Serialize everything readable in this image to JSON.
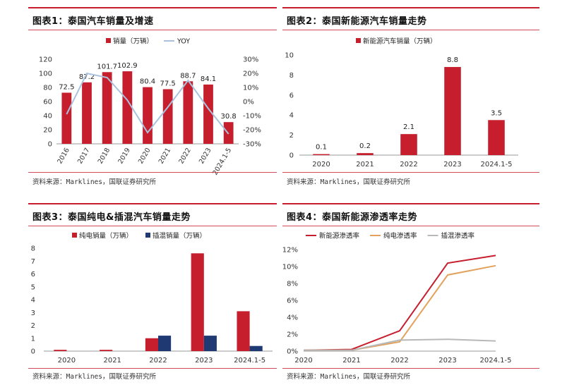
{
  "colors": {
    "red": "#c71e2d",
    "navy": "#1f3a73",
    "lightblue": "#a9c3df",
    "orange": "#e2a15c",
    "gray": "#b8b8b8",
    "rule": "#c71e2d"
  },
  "panels": [
    {
      "title": "图表1：泰国汽车销量及增速",
      "source": "资料来源：Marklines，国联证券研究所"
    },
    {
      "title": "图表2：泰国新能源汽车销量走势",
      "source": "资料来源：Marklines，国联证券研究所"
    },
    {
      "title": "图表3：泰国纯电&插混汽车销量走势",
      "source": "资料来源：Marklines，国联证券研究所"
    },
    {
      "title": "图表4：泰国新能源渗透率走势",
      "source": "资料来源：Marklines，国联证券研究所"
    }
  ],
  "chart_data": [
    {
      "type": "bar+line",
      "categories": [
        "2016",
        "2017",
        "2018",
        "2019",
        "2020",
        "2021",
        "2022",
        "2023",
        "2024.1-5"
      ],
      "series": [
        {
          "name": "销量（万辆）",
          "type": "bar",
          "axis": "left",
          "values": [
            72.5,
            87.2,
            101.7,
            102.9,
            80.4,
            77.5,
            88.7,
            84.1,
            30.8
          ],
          "labels": [
            "72.5",
            "87.2",
            "101.7",
            "102.9",
            "80.4",
            "77.5",
            "88.7",
            "84.1",
            "30.8"
          ]
        },
        {
          "name": "YOY",
          "type": "line",
          "axis": "right",
          "values": [
            -9,
            20,
            17,
            1,
            -22,
            -4,
            15,
            -5,
            -23
          ]
        }
      ],
      "ylim": [
        0,
        120
      ],
      "yticks": [
        "0",
        "20",
        "40",
        "60",
        "80",
        "100",
        "120"
      ],
      "y2lim": [
        -30,
        30
      ],
      "y2ticks": [
        "-30%",
        "-20%",
        "-10%",
        "0%",
        "10%",
        "20%",
        "30%"
      ],
      "legend_position": "top"
    },
    {
      "type": "bar",
      "categories": [
        "2020",
        "2021",
        "2022",
        "2023",
        "2024.1-5"
      ],
      "series": [
        {
          "name": "新能源汽车销量（万辆）",
          "values": [
            0.1,
            0.2,
            2.1,
            8.8,
            3.5
          ],
          "labels": [
            "0.1",
            "0.2",
            "2.1",
            "8.8",
            "3.5"
          ]
        }
      ],
      "ylim": [
        0,
        10
      ],
      "yticks": [
        "0",
        "2",
        "4",
        "6",
        "8",
        "10"
      ],
      "legend_position": "top"
    },
    {
      "type": "bar",
      "categories": [
        "2020",
        "2021",
        "2022",
        "2023",
        "2024.1-5"
      ],
      "series": [
        {
          "name": "纯电销量（万辆）",
          "values": [
            0.1,
            0.1,
            1.0,
            7.6,
            3.1
          ]
        },
        {
          "name": "插混销量（万辆）",
          "values": [
            0.0,
            0.0,
            1.2,
            1.2,
            0.4
          ]
        }
      ],
      "ylim": [
        0,
        8
      ],
      "yticks": [
        "0",
        "1",
        "2",
        "3",
        "4",
        "5",
        "6",
        "7",
        "8"
      ],
      "legend_position": "top"
    },
    {
      "type": "line",
      "categories": [
        "2020",
        "2021",
        "2022",
        "2023",
        "2024.1-5"
      ],
      "series": [
        {
          "name": "新能源渗透率",
          "values": [
            0.1,
            0.2,
            2.4,
            10.4,
            11.3
          ]
        },
        {
          "name": "纯电渗透率",
          "values": [
            0.1,
            0.1,
            1.1,
            9.0,
            10.1
          ]
        },
        {
          "name": "插混渗透率",
          "values": [
            0.1,
            0.1,
            1.3,
            1.4,
            1.2
          ]
        }
      ],
      "ylim": [
        0,
        12
      ],
      "yticks": [
        "0%",
        "2%",
        "4%",
        "6%",
        "8%",
        "10%",
        "12%"
      ],
      "legend_position": "top"
    }
  ]
}
